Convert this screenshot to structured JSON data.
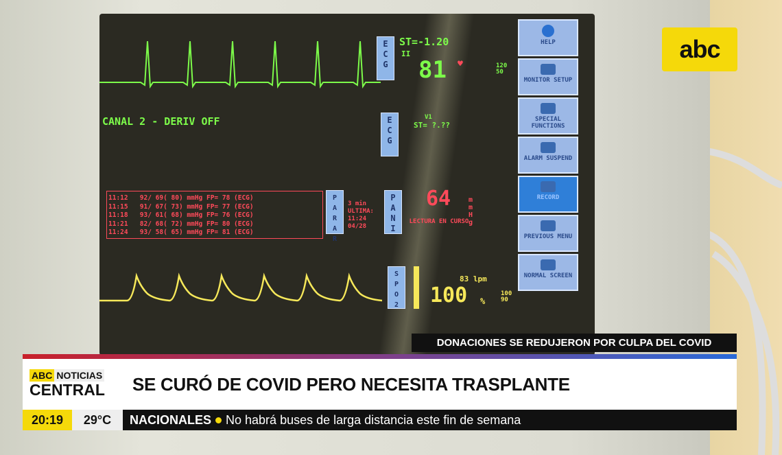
{
  "monitor": {
    "ecg1": {
      "tag": "ECG",
      "st": "ST=-1.20",
      "lead": "II",
      "hr": "81",
      "limits": "120\n50"
    },
    "canal": "CANAL 2 - DERIV OFF",
    "ecg2": {
      "tag": "ECG",
      "lead": "V1",
      "st": "ST= ?.??"
    },
    "pressure_table": [
      "11:12   92/ 69( 80) mmHg FP= 78 (ECG)",
      "11:15   91/ 67( 73) mmHg FP= 77 (ECG)",
      "11:18   93/ 61( 68) mmHg FP= 76 (ECG)",
      "11:21   82/ 68( 72) mmHg FP= 80 (ECG)",
      "11:24   93/ 58( 65) mmHg FP= 81 (ECG)"
    ],
    "parar": {
      "tag": "PARAR",
      "interval": "3 min",
      "ultima": "ULTIMA:",
      "time": "11:24",
      "date": "04/28"
    },
    "pani": {
      "tag": "PANI",
      "value": "64",
      "unit": "mmHg",
      "status": "LECTURA EN CURSO"
    },
    "spo2": {
      "tag": "SPO2",
      "pulse": "83 lpm",
      "value": "100",
      "unit": "%",
      "limits": "100\n90"
    },
    "menu": [
      {
        "label": "HELP",
        "icon": "help-icon"
      },
      {
        "label": "MONITOR SETUP",
        "icon": "monitor-icon"
      },
      {
        "label": "SPECIAL FUNCTIONS",
        "icon": "windows-icon"
      },
      {
        "label": "ALARM SUSPEND",
        "icon": "alarm-off-icon"
      },
      {
        "label": "RECORD",
        "icon": "record-icon"
      },
      {
        "label": "PREVIOUS MENU",
        "icon": "back-icon"
      },
      {
        "label": "NORMAL SCREEN",
        "icon": "screen-icon"
      }
    ]
  },
  "logo": "abc",
  "subheadline": "DONACIONES SE REDUJERON POR CULPA DEL COVID",
  "brand": {
    "abc": "ABC",
    "noticias": "NOTICIAS",
    "central": "CENTRAL"
  },
  "headline": "SE CURÓ DE COVID PERO NECESITA TRASPLANTE",
  "ticker": {
    "time": "20:19",
    "temp": "29°C",
    "section": "NACIONALES",
    "text": "No habrá buses de larga distancia este fin de semana"
  },
  "colors": {
    "brand_yellow": "#f5d90a",
    "ecg_green": "#7dfc4a",
    "pressure_red": "#ff4a5a",
    "spo2_yellow": "#f6e85a"
  }
}
